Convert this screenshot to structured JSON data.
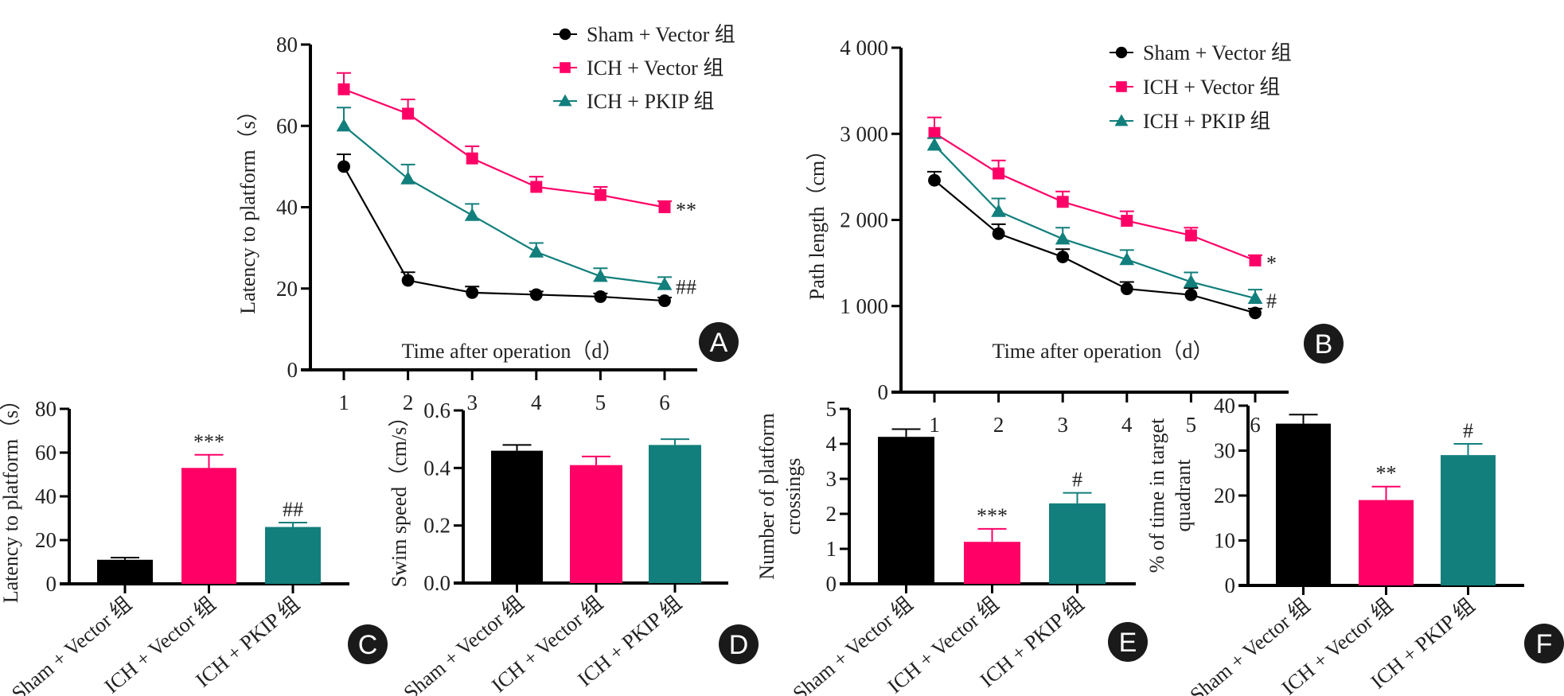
{
  "colors": {
    "sham": "#000000",
    "ich_vector": "#ff0066",
    "ich_pkip": "#127f7c"
  },
  "groups": [
    "Sham + Vector 组",
    "ICH + Vector 组",
    "ICH + PKIP 组"
  ],
  "chart_data": [
    {
      "panel": "A",
      "type": "line",
      "title": "",
      "xlabel": "Time after operation（d）",
      "ylabel": "Latency to platform（s）",
      "x": [
        1,
        2,
        3,
        4,
        5,
        6
      ],
      "xticks": [
        "1",
        "2",
        "3",
        "4",
        "5",
        "6"
      ],
      "ylim": [
        0,
        80
      ],
      "yticks": [
        0,
        20,
        40,
        60,
        80
      ],
      "ytick_labels": [
        "0",
        "20",
        "40",
        "60",
        "80"
      ],
      "legend": "top-right",
      "grid": false,
      "series": [
        {
          "name": "Sham + Vector 组",
          "marker": "circle",
          "values": [
            50,
            22,
            19,
            18.5,
            18,
            17
          ],
          "errors": [
            3,
            2,
            1.5,
            0.8,
            0.8,
            0.8
          ],
          "end_annotation": ""
        },
        {
          "name": "ICH + Vector 组",
          "marker": "square",
          "values": [
            69,
            63,
            52,
            45,
            43,
            40
          ],
          "errors": [
            4,
            3.5,
            3,
            2.5,
            2,
            1.5
          ],
          "end_annotation": "**"
        },
        {
          "name": "ICH + PKIP 组",
          "marker": "triangle",
          "values": [
            60,
            47,
            38,
            29,
            23,
            21
          ],
          "errors": [
            4.5,
            3.5,
            2.8,
            2.2,
            2,
            1.8
          ],
          "end_annotation": "##"
        }
      ]
    },
    {
      "panel": "B",
      "type": "line",
      "title": "",
      "xlabel": "Time after operation（d）",
      "ylabel": "Path length（cm）",
      "x": [
        1,
        2,
        3,
        4,
        5,
        6
      ],
      "xticks": [
        "1",
        "2",
        "3",
        "4",
        "5",
        "6"
      ],
      "ylim": [
        0,
        4000
      ],
      "yticks": [
        0,
        1000,
        2000,
        3000,
        4000
      ],
      "ytick_labels": [
        "0",
        "1 000",
        "2 000",
        "3 000",
        "4 000"
      ],
      "legend": "top-right",
      "grid": false,
      "series": [
        {
          "name": "Sham + Vector 组",
          "marker": "circle",
          "values": [
            2460,
            1840,
            1570,
            1200,
            1130,
            920
          ],
          "errors": [
            100,
            110,
            90,
            80,
            80,
            50
          ],
          "end_annotation": ""
        },
        {
          "name": "ICH + Vector 组",
          "marker": "square",
          "values": [
            3010,
            2540,
            2210,
            1990,
            1820,
            1530
          ],
          "errors": [
            180,
            150,
            120,
            110,
            90,
            60
          ],
          "end_annotation": "*"
        },
        {
          "name": "ICH + PKIP 组",
          "marker": "triangle",
          "values": [
            2870,
            2100,
            1780,
            1540,
            1280,
            1090
          ],
          "errors": [
            80,
            150,
            130,
            110,
            110,
            100
          ],
          "end_annotation": "#"
        }
      ]
    },
    {
      "panel": "C",
      "type": "bar",
      "title": "",
      "xlabel": "",
      "ylabel": "Latency to platform（s）",
      "categories": [
        "Sham + Vector 组",
        "ICH + Vector 组",
        "ICH + PKIP 组"
      ],
      "values": [
        11,
        53,
        26
      ],
      "errors": [
        1,
        6,
        2
      ],
      "annotations": [
        "",
        "***",
        "##"
      ],
      "ylim": [
        0,
        80
      ],
      "yticks": [
        0,
        20,
        40,
        60,
        80
      ],
      "ytick_labels": [
        "0",
        "20",
        "40",
        "60",
        "80"
      ],
      "grid": false
    },
    {
      "panel": "D",
      "type": "bar",
      "title": "",
      "xlabel": "",
      "ylabel": "Swim speed（cm/s）",
      "categories": [
        "Sham + Vector 组",
        "ICH + Vector 组",
        "ICH + PKIP 组"
      ],
      "values": [
        0.46,
        0.41,
        0.48
      ],
      "errors": [
        0.02,
        0.03,
        0.02
      ],
      "annotations": [
        "",
        "",
        ""
      ],
      "ylim": [
        0,
        0.6
      ],
      "yticks": [
        0,
        0.2,
        0.4,
        0.6
      ],
      "ytick_labels": [
        "0.0",
        "0.2",
        "0.4",
        "0.6"
      ],
      "grid": false
    },
    {
      "panel": "E",
      "type": "bar",
      "title": "",
      "xlabel": "",
      "ylabel": [
        "Number of platform",
        "crossings"
      ],
      "categories": [
        "Sham + Vector 组",
        "ICH + Vector 组",
        "ICH + PKIP 组"
      ],
      "values": [
        4.2,
        1.2,
        2.3
      ],
      "errors": [
        0.22,
        0.37,
        0.3
      ],
      "annotations": [
        "",
        "***",
        "#"
      ],
      "ylim": [
        0,
        5
      ],
      "yticks": [
        0,
        1,
        2,
        3,
        4,
        5
      ],
      "ytick_labels": [
        "0",
        "1",
        "2",
        "3",
        "4",
        "5"
      ],
      "grid": false
    },
    {
      "panel": "F",
      "type": "bar",
      "title": "",
      "xlabel": "",
      "ylabel": [
        "% of time in target",
        "quadrant"
      ],
      "categories": [
        "Sham + Vector 组",
        "ICH + Vector 组",
        "ICH + PKIP 组"
      ],
      "values": [
        36,
        19,
        29
      ],
      "errors": [
        2,
        3,
        2.5
      ],
      "annotations": [
        "",
        "**",
        "#"
      ],
      "ylim": [
        0,
        40
      ],
      "yticks": [
        0,
        10,
        20,
        30,
        40
      ],
      "ytick_labels": [
        "0",
        "10",
        "20",
        "30",
        "40"
      ],
      "grid": false
    }
  ]
}
